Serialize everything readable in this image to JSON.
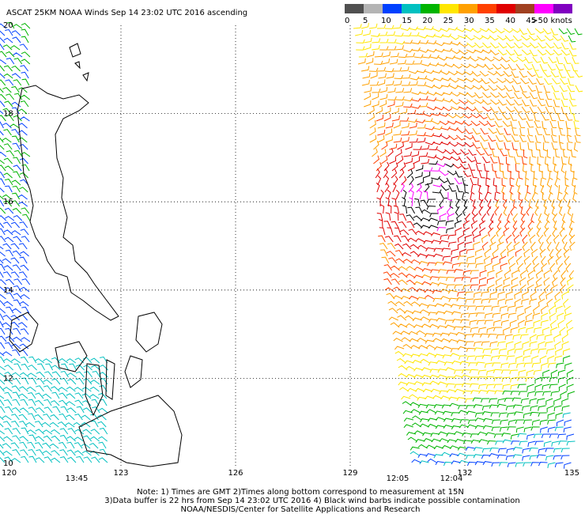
{
  "header": {
    "title": "ASCAT 25KM NOAA Winds Sep 14 23:02 UTC 2016 ascending"
  },
  "legend": {
    "colors": [
      "#505050",
      "#b4b4b4",
      "#0040ff",
      "#00c0c0",
      "#00b400",
      "#ffe600",
      "#ffa000",
      "#ff4000",
      "#e00000",
      "#a04020",
      "#ff00ff",
      "#8000c0"
    ],
    "labels": [
      "0",
      "5",
      "10",
      "15",
      "20",
      "25",
      "30",
      "35",
      "40",
      "45",
      ">50 knots"
    ]
  },
  "map": {
    "lat_labels": [
      "20",
      "18",
      "16",
      "14",
      "12",
      "10"
    ],
    "lon_labels": [
      "120",
      "123",
      "126",
      "129",
      "132",
      "135"
    ],
    "time_labels": [
      "13:45",
      "12:05",
      "12:04"
    ]
  },
  "notes": [
    "Note: 1) Times are GMT 2)Times along bottom correspond to measurement at 15N",
    "3)Data buffer is 22 hrs from Sep 14 23:02 UTC 2016 4) Black wind barbs indicate possible contamination",
    "NOAA/NESDIS/Center for Satellite Applications and Research"
  ]
}
